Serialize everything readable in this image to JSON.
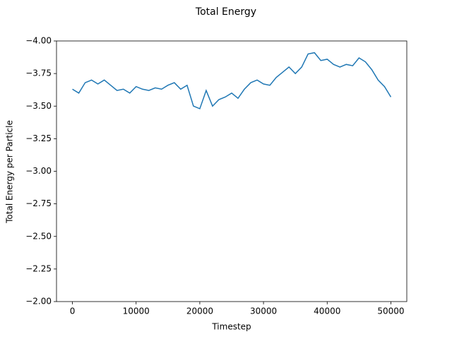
{
  "chart_data": {
    "type": "line",
    "title": "Total Energy",
    "x_label": "Timestep",
    "y_label": "Total Energy per Particle",
    "x": [
      0,
      1000,
      2000,
      3000,
      4000,
      5000,
      6000,
      7000,
      8000,
      9000,
      10000,
      11000,
      12000,
      13000,
      14000,
      15000,
      16000,
      17000,
      18000,
      19000,
      20000,
      21000,
      22000,
      23000,
      24000,
      25000,
      26000,
      27000,
      28000,
      29000,
      30000,
      31000,
      32000,
      33000,
      34000,
      35000,
      36000,
      37000,
      38000,
      39000,
      40000,
      41000,
      42000,
      43000,
      44000,
      45000,
      46000,
      47000,
      48000,
      49000,
      50000
    ],
    "series": [
      {
        "color": "#1f77b4",
        "values": [
          -3.63,
          -3.6,
          -3.68,
          -3.7,
          -3.67,
          -3.7,
          -3.66,
          -3.62,
          -3.63,
          -3.6,
          -3.65,
          -3.63,
          -3.62,
          -3.64,
          -3.63,
          -3.66,
          -3.68,
          -3.63,
          -3.66,
          -3.5,
          -3.48,
          -3.62,
          -3.5,
          -3.55,
          -3.57,
          -3.6,
          -3.56,
          -3.63,
          -3.68,
          -3.7,
          -3.67,
          -3.66,
          -3.72,
          -3.76,
          -3.8,
          -3.75,
          -3.8,
          -3.9,
          -3.91,
          -3.85,
          -3.86,
          -3.82,
          -3.8,
          -3.82,
          -3.81,
          -3.87,
          -3.84,
          -3.78,
          -3.7,
          -3.65,
          -3.57
        ]
      }
    ],
    "xlim": [
      -2500,
      52500
    ],
    "xticks": [
      0,
      10000,
      20000,
      30000,
      40000,
      50000
    ],
    "ylim": [
      -2,
      -4
    ],
    "yticks": [
      {
        "value": -2,
        "label": "−2.00"
      },
      {
        "value": -2.25,
        "label": "−2.25"
      },
      {
        "value": -2.5,
        "label": "−2.50"
      },
      {
        "value": -2.75,
        "label": "−2.75"
      },
      {
        "value": -3,
        "label": "−3.00"
      },
      {
        "value": -3.25,
        "label": "−3.25"
      },
      {
        "value": -3.5,
        "label": "−3.50"
      },
      {
        "value": -3.75,
        "label": "−3.75"
      },
      {
        "value": -4,
        "label": "−4.00"
      }
    ],
    "grid": false
  }
}
